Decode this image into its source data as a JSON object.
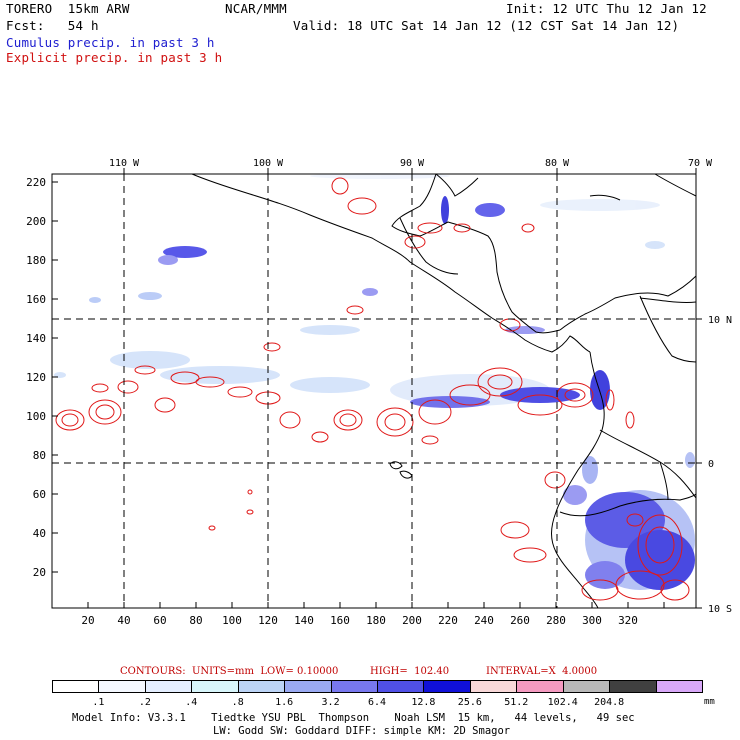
{
  "header": {
    "model": "TORERO  15km ARW",
    "org": "NCAR/MMM",
    "init": "Init: 12 UTC Thu 12 Jan 12",
    "fcst": "Fcst:   54 h",
    "valid": "Valid: 18 UTC Sat 14 Jan 12 (12 CST Sat 14 Jan 12)",
    "legend_cumulus": "Cumulus precip. in past 3 h",
    "legend_explicit": "Explicit precip. in past 3 h"
  },
  "map": {
    "lon_labels": [
      "110 W",
      "100 W",
      "90 W",
      "80 W",
      "70 W"
    ],
    "lat_labels": [
      "10 N",
      "0",
      "10 S"
    ],
    "y_ticks": [
      "220",
      "200",
      "180",
      "160",
      "140",
      "120",
      "100",
      "80",
      "60",
      "40",
      "20"
    ],
    "x_ticks": [
      "20",
      "40",
      "60",
      "80",
      "100",
      "120",
      "140",
      "160",
      "180",
      "200",
      "220",
      "240",
      "260",
      "280",
      "300",
      "320"
    ]
  },
  "contours_info": {
    "label": "CONTOURS:  UNITS=mm  LOW= 0.10000",
    "high": "HIGH=  102.40",
    "interval": "INTERVAL=X  4.0000"
  },
  "colorbar": {
    "colors": [
      "#ffffff",
      "#f4f8ff",
      "#e4eeff",
      "#d8f6fb",
      "#bcd4f6",
      "#9aaaf2",
      "#7878ee",
      "#5050e6",
      "#1010d8",
      "#f8d8d8",
      "#f49ac0",
      "#b8b8b8",
      "#404040",
      "#d8a8f8"
    ],
    "labels": [
      ".1",
      ".2",
      ".4",
      ".8",
      "1.6",
      "3.2",
      "6.4",
      "12.8",
      "25.6",
      "51.2",
      "102.4",
      "204.8"
    ],
    "unit": "mm"
  },
  "footer": {
    "line1": "Model Info: V3.3.1    Tiedtke YSU PBL  Thompson    Noah LSM  15 km,   44 levels,   49 sec",
    "line2": "LW: Godd SW: Goddard DIFF: simple KM: 2D Smagor"
  }
}
